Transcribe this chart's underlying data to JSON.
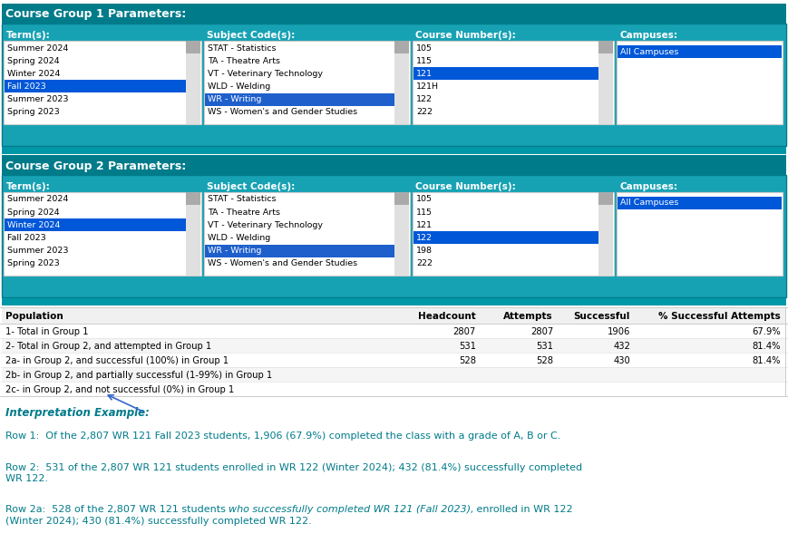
{
  "bg_color": "#ffffff",
  "teal_dark": "#007B8A",
  "teal_mid": "#17a2b4",
  "blue_selected": "#1e5fcc",
  "blue_selected2": "#0057d8",
  "black": "#000000",
  "medium_gray": "#cccccc",
  "teal_strip": "#0097a7",
  "group1_header": "Course Group 1 Parameters:",
  "group2_header": "Course Group 2 Parameters:",
  "col_headers": [
    "Term(s):",
    "Subject Code(s):",
    "Course Number(s):",
    "Campuses:"
  ],
  "g1_terms": [
    "Summer 2024",
    "Spring 2024",
    "Winter 2024",
    "Fall 2023",
    "Summer 2023",
    "Spring 2023"
  ],
  "g1_term_selected": "Fall 2023",
  "g1_subjects": [
    "STAT - Statistics",
    "TA - Theatre Arts",
    "VT - Veterinary Technology",
    "WLD - Welding",
    "WR - Writing",
    "WS - Women's and Gender Studies"
  ],
  "g1_subject_selected": "WR - Writing",
  "g1_courses": [
    "105",
    "115",
    "121",
    "121H",
    "122",
    "222"
  ],
  "g1_course_selected": "121",
  "g1_campus": "All Campuses",
  "g2_terms": [
    "Summer 2024",
    "Spring 2024",
    "Winter 2024",
    "Fall 2023",
    "Summer 2023",
    "Spring 2023"
  ],
  "g2_term_selected": "Winter 2024",
  "g2_subjects": [
    "STAT - Statistics",
    "TA - Theatre Arts",
    "VT - Veterinary Technology",
    "WLD - Welding",
    "WR - Writing",
    "WS - Women's and Gender Studies"
  ],
  "g2_subject_selected": "WR - Writing",
  "g2_courses": [
    "105",
    "115",
    "121",
    "122",
    "198",
    "222"
  ],
  "g2_course_selected": "122",
  "g2_campus": "All Campuses",
  "table_col_headers": [
    "Population",
    "Headcount",
    "Attempts",
    "Successful",
    "% Successful Attempts"
  ],
  "table_rows": [
    [
      "1- Total in Group 1",
      "2807",
      "2807",
      "1906",
      "67.9%"
    ],
    [
      "2- Total in Group 2, and attempted in Group 1",
      "531",
      "531",
      "432",
      "81.4%"
    ],
    [
      "2a- in Group 2, and successful (100%) in Group 1",
      "528",
      "528",
      "430",
      "81.4%"
    ],
    [
      "2b- in Group 2, and partially successful (1-99%) in Group 1",
      "",
      "",
      "",
      ""
    ],
    [
      "2c- in Group 2, and not successful (0%) in Group 1",
      "",
      "",
      "",
      ""
    ]
  ],
  "interp_label": "Interpretation Example:",
  "row1_text": "Row 1:  Of the 2,807 WR 121 Fall 2023 students, 1,906 (67.9%) completed the class with a grade of A, B or C.",
  "row2_text": "Row 2:  531 of the 2,807 WR 121 students enrolled in WR 122 (Winter 2024); 432 (81.4%) successfully completed\nWR 122.",
  "row2a_text_normal1": "Row 2a:  528 of the 2,807 WR 121 students ",
  "row2a_text_italic": "who successfully completed WR 121 (Fall 2023),",
  "row2a_text_normal2": " enrolled in WR 122",
  "row2a_text_line2": "(Winter 2024); 430 (81.4%) successfully completed WR 122."
}
